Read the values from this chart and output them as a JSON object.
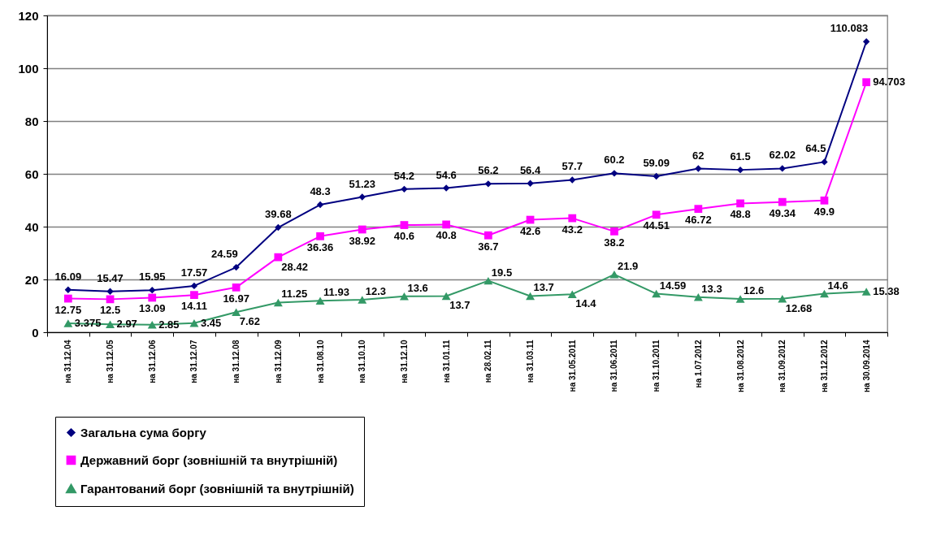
{
  "chart_data": {
    "type": "line",
    "categories": [
      "на 31.12.04",
      "на 31.12.05",
      "на 31.12.06",
      "на 31.12.07",
      "на 31.12.08",
      "на 31.12.09",
      "на 31.08.10",
      "на 31.10.10",
      "на 31.12.10",
      "на 31.01.11",
      "на 28.02.11",
      "на 31.03.11",
      "на 31.05.2011",
      "на 31.06.2011",
      "на 31.10.2011",
      "на 1.07.2012",
      "на 31.08.2012",
      "на 31.09.2012",
      "на 31.12.2012",
      "на 30.09.2014"
    ],
    "series": [
      {
        "name": "Загальна сума боргу",
        "color": "#000080",
        "marker": "diamond",
        "values": [
          16.09,
          15.47,
          15.95,
          17.57,
          24.59,
          39.68,
          48.3,
          51.23,
          54.2,
          54.6,
          56.2,
          56.4,
          57.7,
          60.2,
          59.09,
          62,
          61.5,
          62.02,
          64.5,
          110.083
        ]
      },
      {
        "name": "Державний борг (зовнішній та внутрішній)",
        "color": "#ff00ff",
        "marker": "square",
        "values": [
          12.75,
          12.5,
          13.09,
          14.11,
          16.97,
          28.42,
          36.36,
          38.92,
          40.6,
          40.8,
          36.7,
          42.6,
          43.2,
          38.2,
          44.51,
          46.72,
          48.8,
          49.34,
          49.9,
          94.703
        ]
      },
      {
        "name": "Гарантований борг (зовнішній та внутрішній)",
        "color": "#339966",
        "marker": "triangle",
        "values": [
          3.375,
          2.97,
          2.85,
          3.45,
          7.62,
          11.25,
          11.93,
          12.3,
          13.6,
          13.7,
          19.5,
          13.7,
          14.4,
          21.9,
          14.59,
          13.3,
          12.6,
          12.68,
          14.6,
          15.38
        ]
      }
    ],
    "ylim": [
      0,
      120
    ],
    "yticks": [
      0,
      20,
      40,
      60,
      80,
      100,
      120
    ],
    "grid": "y",
    "legend": "bottom left",
    "data_labels": true
  }
}
